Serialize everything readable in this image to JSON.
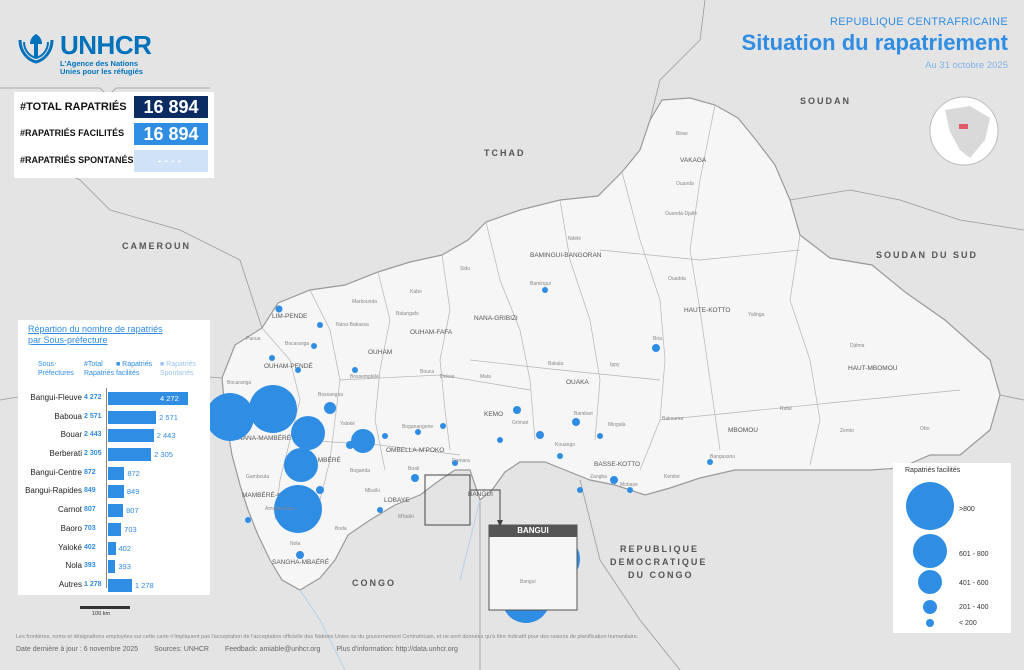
{
  "org": {
    "name": "UNHCR",
    "tagline_line1": "L'Agence des Nations",
    "tagline_line2": "Unies pour les réfugiés"
  },
  "header": {
    "country": "REPUBLIQUE CENTRAFRICAINE",
    "title": "Situation du rapatriement",
    "date": "Au 31 octobre 2025"
  },
  "kpis": {
    "total_label": "#TOTAL RAPATRIÉS",
    "total_value": "16 894",
    "facilitated_label": "#RAPATRIÉS FACILITÉS",
    "facilitated_value": "16 894",
    "spontaneous_label": "#RAPATRIÉS SPONTANÉS",
    "spontaneous_value": "----"
  },
  "panel": {
    "title_line1": "Répartion du nombre de rapatriés",
    "title_line2": "par Sous-préfecture",
    "legend_sub": "Sous-",
    "legend_sub2": "Préfectures",
    "legend_total": "#Total",
    "legend_total2": "Rapatriés",
    "legend_fac": "■ Rapatriés",
    "legend_fac2": "facilités",
    "legend_spon": "■ Rapatriés",
    "legend_spon2": "Spontanés",
    "rows": [
      {
        "name": "Bangui-Fleuve",
        "total": "4 272",
        "value": 4272,
        "label": "4 272"
      },
      {
        "name": "Baboua",
        "total": "2 571",
        "value": 2571,
        "label": "2 571"
      },
      {
        "name": "Bouar",
        "total": "2 443",
        "value": 2443,
        "label": "2 443"
      },
      {
        "name": "Berberati",
        "total": "2 305",
        "value": 2305,
        "label": "2 305"
      },
      {
        "name": "Bangui-Centre",
        "total": "872",
        "value": 872,
        "label": "872"
      },
      {
        "name": "Bangui-Rapides",
        "total": "849",
        "value": 849,
        "label": "849"
      },
      {
        "name": "Carnot",
        "total": "807",
        "value": 807,
        "label": "807"
      },
      {
        "name": "Baoro",
        "total": "703",
        "value": 703,
        "label": "703"
      },
      {
        "name": "Yaloké",
        "total": "402",
        "value": 402,
        "label": "402"
      },
      {
        "name": "Nola",
        "total": "393",
        "value": 393,
        "label": "393"
      },
      {
        "name": "Autres",
        "total": "1 278",
        "value": 1278,
        "label": "1 278"
      }
    ]
  },
  "scale_label": "100 km",
  "bubble_legend": {
    "title": "Rapatriés facilités",
    "classes": [
      ">800",
      "601 - 800",
      "401 - 600",
      "201 - 400",
      "< 200"
    ]
  },
  "inset_title": "BANGUI",
  "map_labels": {
    "countries": [
      "SOUDAN",
      "TCHAD",
      "CAMEROUN",
      "SOUDAN DU SUD",
      "REPUBLIQUE",
      "DEMOCRATIQUE",
      "DU CONGO",
      "CONGO"
    ],
    "prefectures": [
      "VAKAGA",
      "BAMINGUI-BANGORAN",
      "HAUTE-KOTTO",
      "HAUT-MBOMOU",
      "MBOMOU",
      "BASSE-KOTTO",
      "OUAKA",
      "KEMO",
      "NANA-GRIBIZI",
      "OUHAM-FAFA",
      "OUHAM",
      "LIM-PENDE",
      "OUHAM-PENDÉ",
      "NANA-MAMBÉRÉ",
      "MAMBÉRÉ",
      "MAMBÉRÉ-KADÉÏ",
      "OMBELLA-M'POKO",
      "LOBAYE",
      "SANGHA-MBAÉRÉ",
      "BANGUI"
    ]
  },
  "footer": {
    "disclaimer": "Les frontières, noms et désignations employées sur cette carte n'impliquent pas l'acceptation de l'acceptation officielle des Nations Unies ou du gouvernement Centrafricain, et ne sont données qu'à titre indicatif pour des raisons de planification humanitaire.",
    "updated": "Date dernière à jour : 6 novembre 2025",
    "sources": "Sources: UNHCR",
    "feedback": "Feedback: amiable@unhcr.org",
    "info": "Plus d'information: http://data.unhcr.org"
  },
  "colors": {
    "accent": "#2f8de4",
    "navy": "#0b2c63",
    "light": "#cfe2f8",
    "map_fill": "#f4f4f4",
    "neighbor_fill": "#e6e6e6"
  }
}
